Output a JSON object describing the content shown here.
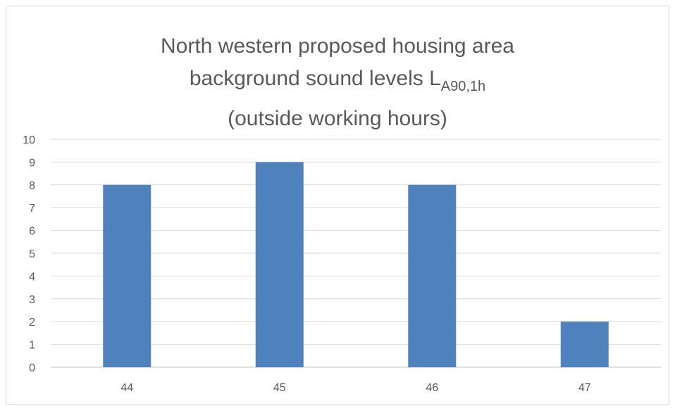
{
  "chart_data": {
    "type": "bar",
    "title": {
      "line1": "North western proposed housing area",
      "line2_main": "background sound levels  L",
      "line2_sub": "A90,1h",
      "line3": "(outside working hours)"
    },
    "categories": [
      "44",
      "45",
      "46",
      "47"
    ],
    "values": [
      8,
      9,
      8,
      2
    ],
    "xlabel": "",
    "ylabel": "",
    "ylim": [
      0,
      10
    ],
    "yticks": [
      "0",
      "1",
      "2",
      "3",
      "4",
      "5",
      "6",
      "7",
      "8",
      "9",
      "10"
    ],
    "grid": true,
    "legend": "none",
    "bar_color": "#4f81bd",
    "grid_color": "#d9d9d9",
    "text_color": "#595959"
  }
}
